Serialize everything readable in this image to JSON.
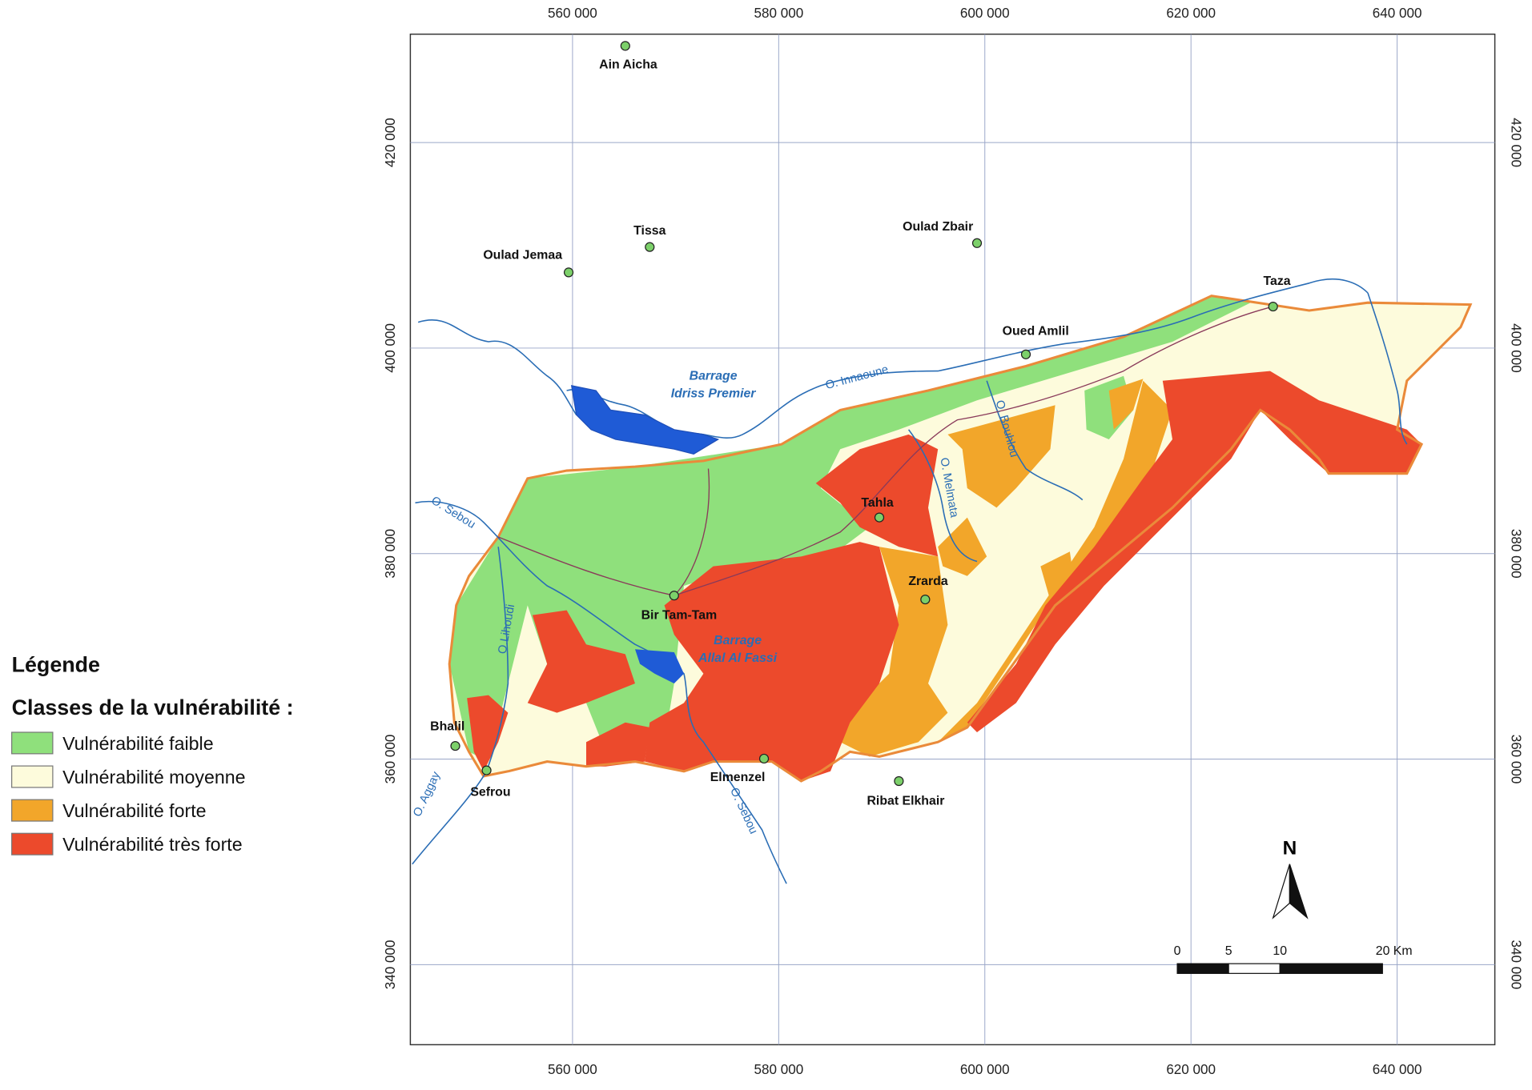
{
  "map": {
    "xticks": [
      {
        "value": 560000,
        "label": "560 000"
      },
      {
        "value": 580000,
        "label": "580 000"
      },
      {
        "value": 600000,
        "label": "600 000"
      },
      {
        "value": 620000,
        "label": "620 000"
      },
      {
        "value": 640000,
        "label": "640 000"
      }
    ],
    "yticks": [
      {
        "value": 420000,
        "label": "420 000"
      },
      {
        "value": 400000,
        "label": "400 000"
      },
      {
        "value": 380000,
        "label": "380 000"
      },
      {
        "value": 360000,
        "label": "360 000"
      },
      {
        "value": 340000,
        "label": "340 000"
      }
    ],
    "places": [
      "Ain Aicha",
      "Tissa",
      "Oulad Jemaa",
      "Oulad Zbair",
      "Taza",
      "Oued Amlil",
      "Tahla",
      "Bir Tam-Tam",
      "Zrarda",
      "Bhalil",
      "Sefrou",
      "Elmenzel",
      "Ribat Elkhair"
    ],
    "rivers": [
      "O. Innaoune",
      "O. Sebou",
      "O.Lihoudi",
      "O. Bouhlou",
      "O. Melmata",
      "O. Aggay",
      "O. Sebou"
    ],
    "dams": [
      [
        "Barrage",
        "Idriss Premier"
      ],
      [
        "Barrage",
        "Allal Al Fassi"
      ]
    ],
    "north": "N",
    "scale_bar": [
      0,
      5,
      10,
      {
        "value": 20,
        "label": "20 Km"
      }
    ]
  },
  "legend": {
    "title": "Légende",
    "subtitle": "Classes de la vulnérabilité :",
    "items": [
      {
        "label": "Vulnérabilité faible",
        "color": "#8fe07c"
      },
      {
        "label": "Vulnérabilité moyenne",
        "color": "#fdfbdc"
      },
      {
        "label": "Vulnérabilité forte",
        "color": "#f2a62a"
      },
      {
        "label": "Vulnérabilité très forte",
        "color": "#ec4a2c"
      }
    ]
  }
}
